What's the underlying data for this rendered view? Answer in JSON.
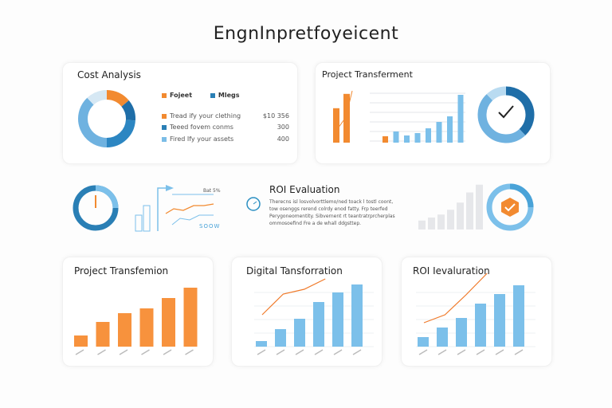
{
  "header": {
    "title": "EngnInpretfoyeicent"
  },
  "cost_analysis": {
    "title": "Cost Analysis",
    "legend": [
      {
        "label": "Fojeet",
        "color": "#f28a30"
      },
      {
        "label": "Mlegs",
        "color": "#2a7fb5"
      }
    ],
    "rows": [
      {
        "label": "Tread ify your clething",
        "value": "$10 356",
        "color": "#f28a30"
      },
      {
        "label": "Teeed fovem conms",
        "value": "300",
        "color": "#2a7fb5"
      },
      {
        "label": "Fired Ify your assets",
        "value": "400",
        "color": "#7bbde6"
      }
    ],
    "donut": [
      {
        "value": 14,
        "color": "#f28a30"
      },
      {
        "value": 12,
        "color": "#1f6ea8"
      },
      {
        "value": 24,
        "color": "#2c86c2"
      },
      {
        "value": 38,
        "color": "#6fb2e0"
      },
      {
        "value": 12,
        "color": "#d6e8f4"
      }
    ]
  },
  "project_transferment": {
    "title": "Project Transferment",
    "orange_bars": [
      48,
      68
    ],
    "blue_bars": [
      8,
      14,
      9,
      12,
      18,
      26,
      33,
      60
    ],
    "donut": [
      {
        "value": 38,
        "color": "#1f6ea8"
      },
      {
        "value": 50,
        "color": "#6fb2e0"
      },
      {
        "value": 12,
        "color": "#b9dbf1"
      }
    ],
    "status_icon": "check-icon"
  },
  "middle": {
    "gauge_icon": "clock-gauge-icon",
    "line_label": "Bat 5%",
    "line_footer": "SOOW",
    "roi": {
      "title": "ROI Evaluation",
      "body": "Therecns isl losvolvorttlemo/ned toack l tostl coont, tow osenggs rerend colrdy enod fatty. Frp teerfed Perygoneomentity. Sibvernent rt teantratrprcherplas ommosoefind Fre a de whall ddgsttep."
    },
    "gray_bars": [
      15,
      20,
      25,
      33,
      45,
      62,
      75
    ],
    "badge_icon": "orange-shield-check-icon"
  },
  "charts": [
    {
      "title": "Project Transfemion",
      "color": "#f7923d",
      "values": [
        14,
        31,
        42,
        48,
        61,
        74
      ],
      "line": null
    },
    {
      "title": "Digital Tansforration",
      "color": "#7cc0ea",
      "values": [
        7,
        22,
        35,
        56,
        68,
        78
      ],
      "line": [
        40,
        66,
        72,
        85
      ]
    },
    {
      "title": "ROI Ievaluration",
      "color": "#7cc0ea",
      "values": [
        12,
        24,
        36,
        54,
        66,
        77
      ],
      "line": [
        30,
        40,
        65,
        92
      ]
    }
  ],
  "colors": {
    "orange": "#f28a30",
    "blue": "#2a7fb5",
    "light_blue": "#7cc0ea"
  }
}
